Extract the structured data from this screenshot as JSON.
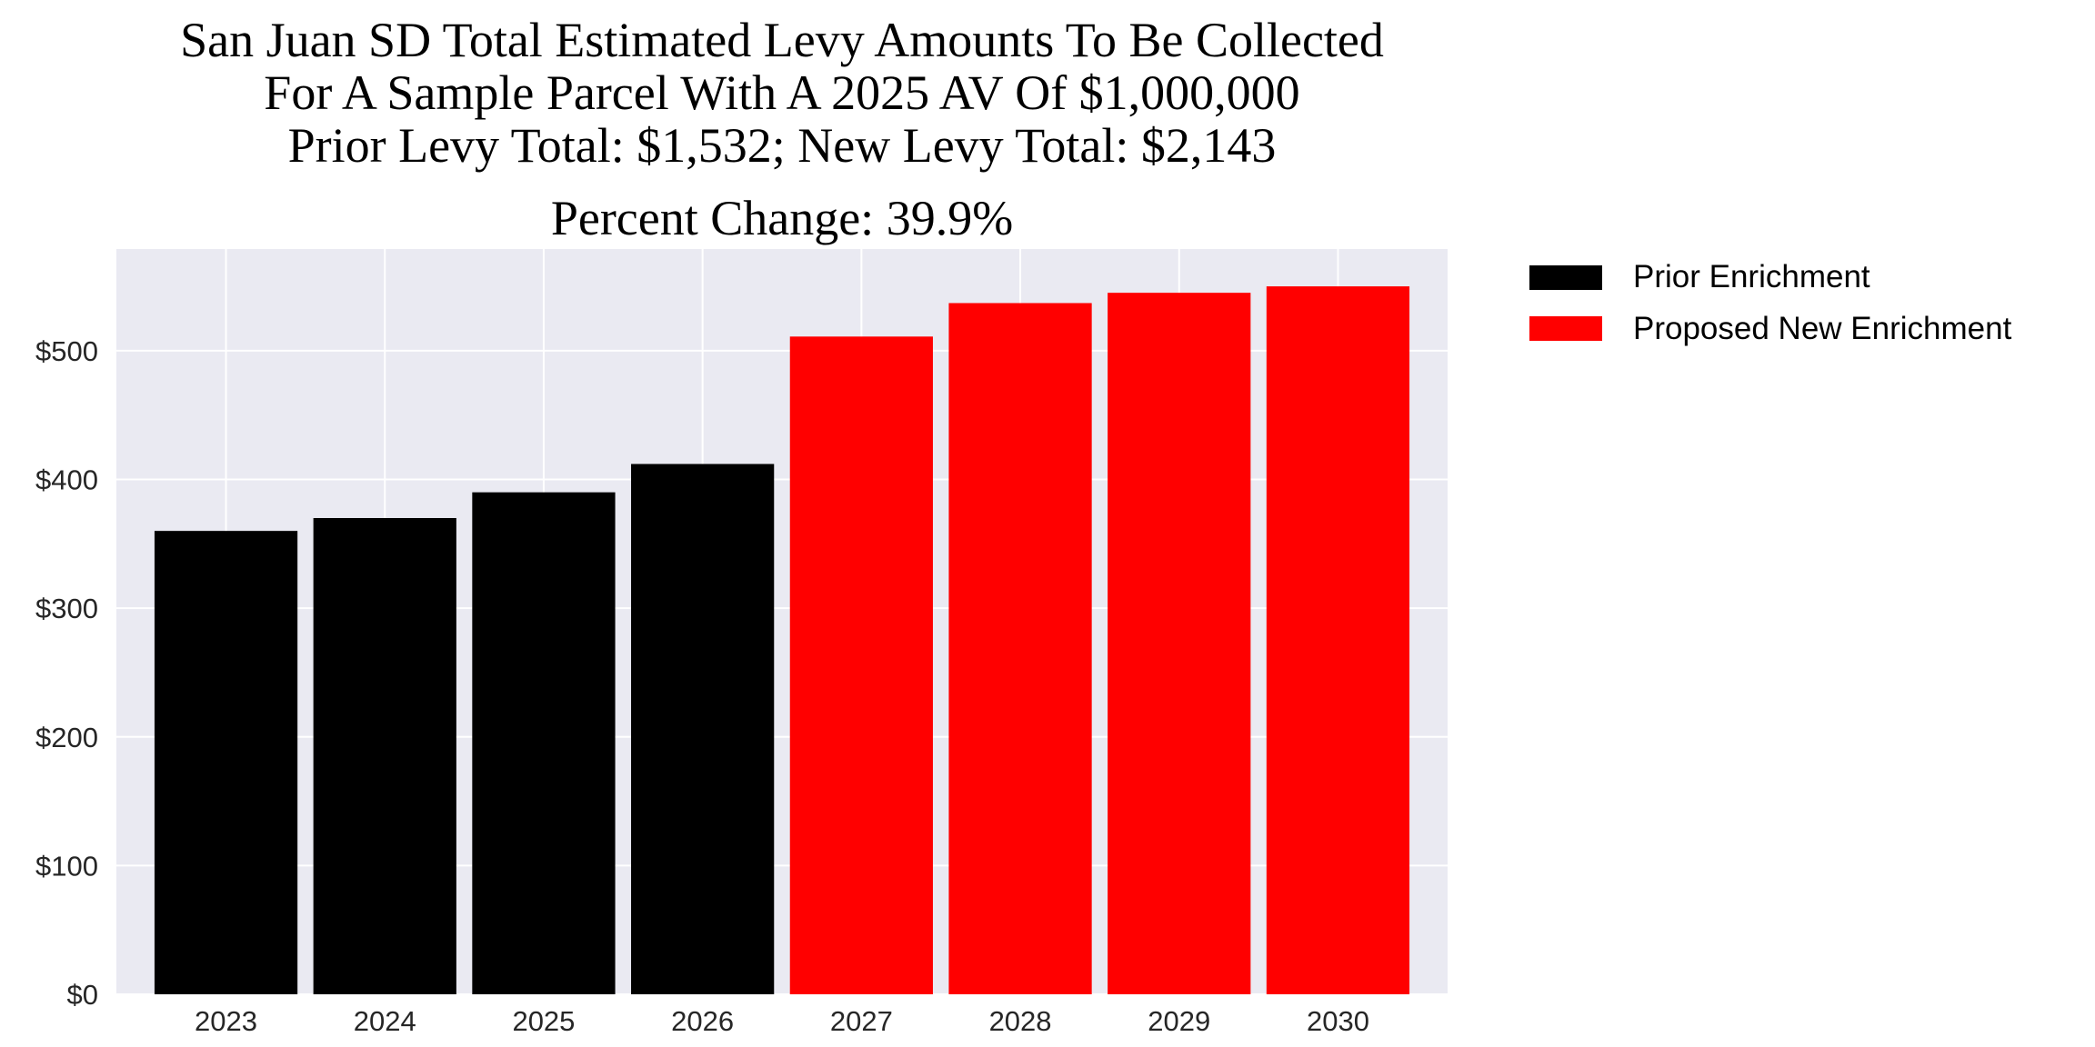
{
  "chart_data": {
    "type": "bar",
    "title": [
      "San Juan SD Total Estimated Levy Amounts To Be Collected",
      "For A Sample Parcel With A 2025 AV Of $1,000,000",
      "Prior Levy Total:  $1,532; New Levy Total: $2,143",
      "Percent Change: 39.9%"
    ],
    "xlabel": "",
    "ylabel": "",
    "categories": [
      "2023",
      "2024",
      "2025",
      "2026",
      "2027",
      "2028",
      "2029",
      "2030"
    ],
    "series": [
      {
        "name": "Prior Enrichment",
        "color": "#000000",
        "values": [
          360,
          370,
          390,
          412,
          null,
          null,
          null,
          null
        ]
      },
      {
        "name": "Proposed New Enrichment",
        "color": "#ff0000",
        "values": [
          null,
          null,
          null,
          null,
          511,
          537,
          545,
          550
        ]
      }
    ],
    "ylim": [
      0,
      579
    ],
    "yticks": [
      0,
      100,
      200,
      300,
      400,
      500
    ],
    "ytick_labels": [
      "$0",
      "$100",
      "$200",
      "$300",
      "$400",
      "$500"
    ],
    "grid": true,
    "background": "#eaeaf2",
    "legend_placement": "outside-top-right"
  }
}
